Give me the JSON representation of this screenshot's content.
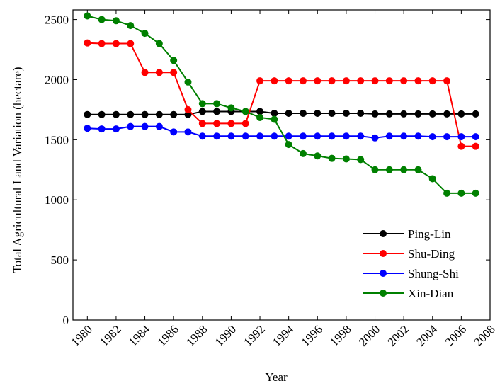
{
  "chart_data": {
    "type": "line",
    "x_label": "Year",
    "y_label": "Total Agricultural Land Variation (hectare)",
    "x": [
      1980,
      1981,
      1982,
      1983,
      1984,
      1985,
      1986,
      1987,
      1988,
      1989,
      1990,
      1991,
      1992,
      1993,
      1994,
      1995,
      1996,
      1997,
      1998,
      1999,
      2000,
      2001,
      2002,
      2003,
      2004,
      2005,
      2006,
      2007
    ],
    "series": [
      {
        "name": "Ping-Lin",
        "color": "#000000",
        "values": [
          1710,
          1710,
          1710,
          1710,
          1710,
          1710,
          1710,
          1710,
          1735,
          1735,
          1735,
          1735,
          1735,
          1720,
          1720,
          1720,
          1720,
          1720,
          1720,
          1720,
          1715,
          1715,
          1715,
          1715,
          1715,
          1715,
          1715,
          1715
        ]
      },
      {
        "name": "Shu-Ding",
        "color": "#ff0000",
        "values": [
          2305,
          2300,
          2300,
          2300,
          2060,
          2060,
          2060,
          1750,
          1635,
          1635,
          1635,
          1635,
          1990,
          1990,
          1990,
          1990,
          1990,
          1990,
          1990,
          1990,
          1990,
          1990,
          1990,
          1990,
          1990,
          1990,
          1445,
          1445
        ]
      },
      {
        "name": "Shung-Shi",
        "color": "#0000ff",
        "values": [
          1595,
          1590,
          1590,
          1610,
          1610,
          1610,
          1565,
          1565,
          1530,
          1530,
          1530,
          1530,
          1530,
          1530,
          1530,
          1530,
          1530,
          1530,
          1530,
          1530,
          1515,
          1530,
          1530,
          1530,
          1525,
          1525,
          1525,
          1525
        ]
      },
      {
        "name": "Xin-Dian",
        "color": "#008000",
        "values": [
          2530,
          2500,
          2490,
          2450,
          2385,
          2300,
          2160,
          1980,
          1800,
          1800,
          1765,
          1735,
          1685,
          1670,
          1460,
          1385,
          1365,
          1345,
          1340,
          1335,
          1250,
          1250,
          1250,
          1250,
          1175,
          1055,
          1055,
          1055
        ]
      }
    ],
    "xlim": [
      1979,
      2008
    ],
    "xticks": [
      1980,
      1982,
      1984,
      1986,
      1988,
      1990,
      1992,
      1994,
      1996,
      1998,
      2000,
      2002,
      2004,
      2006,
      2008
    ],
    "ylim": [
      0,
      2580
    ],
    "yticks": [
      0,
      500,
      1000,
      1500,
      2000,
      2500
    ],
    "legend": "lower right"
  }
}
